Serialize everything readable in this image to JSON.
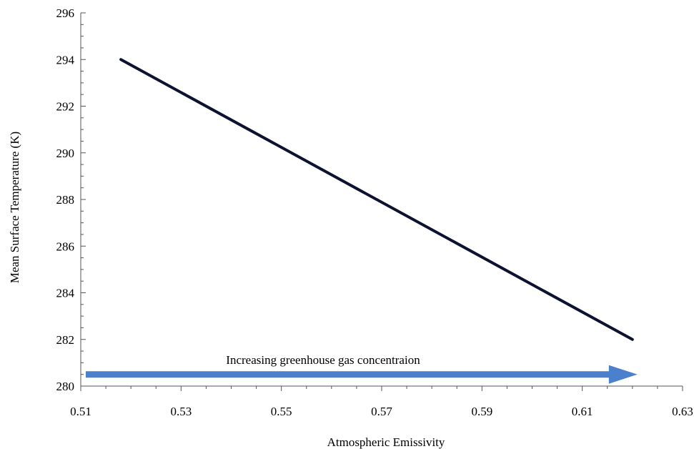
{
  "chart_data": {
    "type": "line",
    "title": "",
    "xlabel": "Atmospheric Emissivity",
    "ylabel": "Mean Surface Temperature  (K)",
    "xlim": [
      0.51,
      0.63
    ],
    "ylim": [
      280,
      296
    ],
    "x_ticks": [
      "0.51",
      "0.53",
      "0.55",
      "0.57",
      "0.59",
      "0.61",
      "0.63"
    ],
    "y_ticks": [
      "280",
      "282",
      "284",
      "286",
      "288",
      "290",
      "292",
      "294",
      "296"
    ],
    "grid": false,
    "series": [
      {
        "color": "#0d1230",
        "x": [
          0.518,
          0.62
        ],
        "y": [
          294,
          282
        ]
      }
    ],
    "annotation": {
      "text": "Increasing greenhouse gas concentraion",
      "arrow_from_x": 0.511,
      "arrow_to_x": 0.621,
      "arrow_y": 280.5,
      "color": "#4a80cc"
    }
  }
}
